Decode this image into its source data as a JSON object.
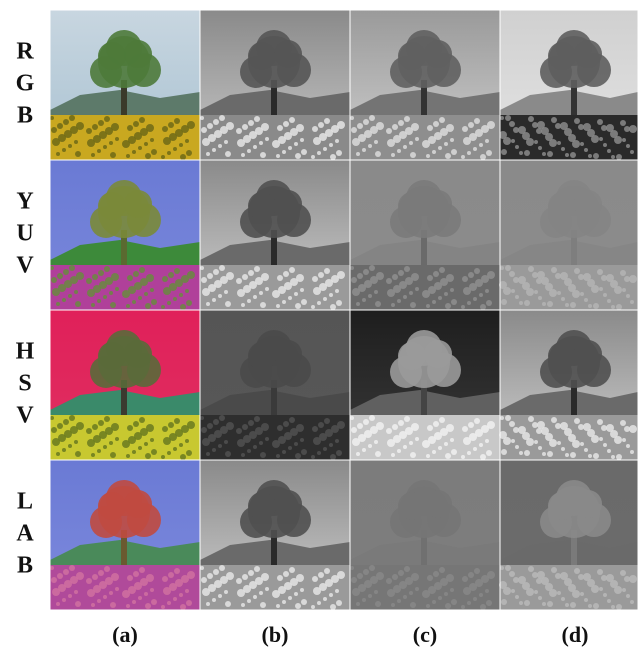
{
  "rows": [
    {
      "letters": [
        "R",
        "G",
        "B"
      ]
    },
    {
      "letters": [
        "Y",
        "U",
        "V"
      ]
    },
    {
      "letters": [
        "H",
        "S",
        "V"
      ]
    },
    {
      "letters": [
        "L",
        "A",
        "B"
      ]
    }
  ],
  "column_labels": [
    "(a)",
    "(b)",
    "(c)",
    "(d)"
  ]
}
